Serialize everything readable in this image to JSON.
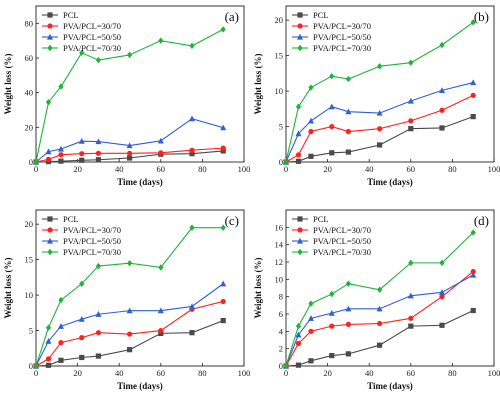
{
  "colors": {
    "PCL": "#4a4a4a",
    "PVA/PCL=30/70": "#ff2020",
    "PVA/PCL=50/50": "#2f5fd6",
    "PVA/PCL=70/30": "#1fb33a"
  },
  "markers": {
    "PCL": "square",
    "PVA/PCL=30/70": "circle",
    "PVA/PCL=50/50": "triangle",
    "PVA/PCL=70/30": "diamond"
  },
  "chart_data": [
    {
      "type": "line",
      "panel_label": "(a)",
      "xlabel": "Time (days)",
      "ylabel": "Weight loss (%)",
      "xlim": [
        0,
        100
      ],
      "ylim": [
        0,
        90
      ],
      "xticks": [
        0,
        20,
        40,
        60,
        80,
        100
      ],
      "yticks": [
        0,
        20,
        40,
        60,
        80
      ],
      "legend_position": "top-left",
      "x": [
        0,
        6,
        12,
        22,
        30,
        45,
        60,
        75,
        90
      ],
      "series": [
        {
          "name": "PCL",
          "values": [
            0,
            0.2,
            0.5,
            1.0,
            1.3,
            2.3,
            4.5,
            4.8,
            6.4
          ]
        },
        {
          "name": "PVA/PCL=30/70",
          "values": [
            0,
            1.5,
            4.2,
            4.8,
            5.0,
            5.0,
            5.3,
            6.8,
            8.0
          ]
        },
        {
          "name": "PVA/PCL=50/50",
          "values": [
            0,
            6.0,
            7.5,
            12.0,
            11.8,
            9.5,
            12.2,
            25.0,
            19.8
          ]
        },
        {
          "name": "PVA/PCL=70/30",
          "values": [
            0,
            34.5,
            43.5,
            63.0,
            58.8,
            61.8,
            70.0,
            67.0,
            76.5
          ]
        }
      ]
    },
    {
      "type": "line",
      "panel_label": "(b)",
      "xlabel": "Time (days)",
      "ylabel": "Weight loss (%)",
      "xlim": [
        0,
        100
      ],
      "ylim": [
        0,
        22
      ],
      "xticks": [
        0,
        20,
        40,
        60,
        80,
        100
      ],
      "yticks": [
        0,
        5,
        10,
        15,
        20
      ],
      "legend_position": "top-left",
      "x": [
        0,
        6,
        12,
        22,
        30,
        45,
        60,
        75,
        90
      ],
      "series": [
        {
          "name": "PCL",
          "values": [
            0,
            0.1,
            0.8,
            1.3,
            1.4,
            2.4,
            4.7,
            4.8,
            6.4
          ]
        },
        {
          "name": "PVA/PCL=30/70",
          "values": [
            0,
            1.0,
            4.3,
            5.0,
            4.3,
            4.7,
            5.8,
            7.3,
            9.4
          ]
        },
        {
          "name": "PVA/PCL=50/50",
          "values": [
            0,
            4.0,
            5.8,
            7.8,
            7.1,
            6.9,
            8.6,
            10.1,
            11.2
          ]
        },
        {
          "name": "PVA/PCL=70/30",
          "values": [
            0,
            7.8,
            10.5,
            12.1,
            11.7,
            13.5,
            14.0,
            16.5,
            19.7
          ]
        }
      ]
    },
    {
      "type": "line",
      "panel_label": "(c)",
      "xlabel": "Time (days)",
      "ylabel": "Weight loss (%)",
      "xlim": [
        0,
        100
      ],
      "ylim": [
        0,
        22
      ],
      "xticks": [
        0,
        20,
        40,
        60,
        80,
        100
      ],
      "yticks": [
        0,
        5,
        10,
        15,
        20
      ],
      "legend_position": "top-left",
      "x": [
        0,
        6,
        12,
        22,
        30,
        45,
        60,
        75,
        90
      ],
      "series": [
        {
          "name": "PCL",
          "values": [
            0,
            0.1,
            0.8,
            1.2,
            1.4,
            2.3,
            4.6,
            4.7,
            6.4
          ]
        },
        {
          "name": "PVA/PCL=30/70",
          "values": [
            0,
            1.0,
            3.3,
            4.0,
            4.7,
            4.5,
            5.0,
            8.0,
            9.1
          ]
        },
        {
          "name": "PVA/PCL=50/50",
          "values": [
            0,
            3.5,
            5.6,
            6.6,
            7.3,
            7.8,
            7.8,
            8.4,
            11.6
          ]
        },
        {
          "name": "PVA/PCL=70/30",
          "values": [
            0,
            5.4,
            9.3,
            11.6,
            14.1,
            14.5,
            13.9,
            19.5,
            19.5
          ]
        }
      ]
    },
    {
      "type": "line",
      "panel_label": "(d)",
      "xlabel": "Time (days)",
      "ylabel": "Weight loss (%)",
      "xlim": [
        0,
        100
      ],
      "ylim": [
        0,
        18
      ],
      "xticks": [
        0,
        20,
        40,
        60,
        80,
        100
      ],
      "yticks": [
        0,
        2,
        4,
        6,
        8,
        10,
        12,
        14,
        16
      ],
      "legend_position": "top-left",
      "x": [
        0,
        6,
        12,
        22,
        30,
        45,
        60,
        75,
        90
      ],
      "series": [
        {
          "name": "PCL",
          "values": [
            0,
            0.1,
            0.6,
            1.2,
            1.4,
            2.4,
            4.6,
            4.7,
            6.4
          ]
        },
        {
          "name": "PVA/PCL=30/70",
          "values": [
            0,
            2.6,
            4.0,
            4.6,
            4.8,
            4.9,
            5.5,
            8.0,
            10.9
          ]
        },
        {
          "name": "PVA/PCL=50/50",
          "values": [
            0,
            3.6,
            5.5,
            6.1,
            6.6,
            6.6,
            8.1,
            8.5,
            10.5
          ]
        },
        {
          "name": "PVA/PCL=70/30",
          "values": [
            0,
            4.6,
            7.2,
            8.3,
            9.5,
            8.8,
            11.9,
            11.9,
            15.4
          ]
        }
      ]
    }
  ]
}
